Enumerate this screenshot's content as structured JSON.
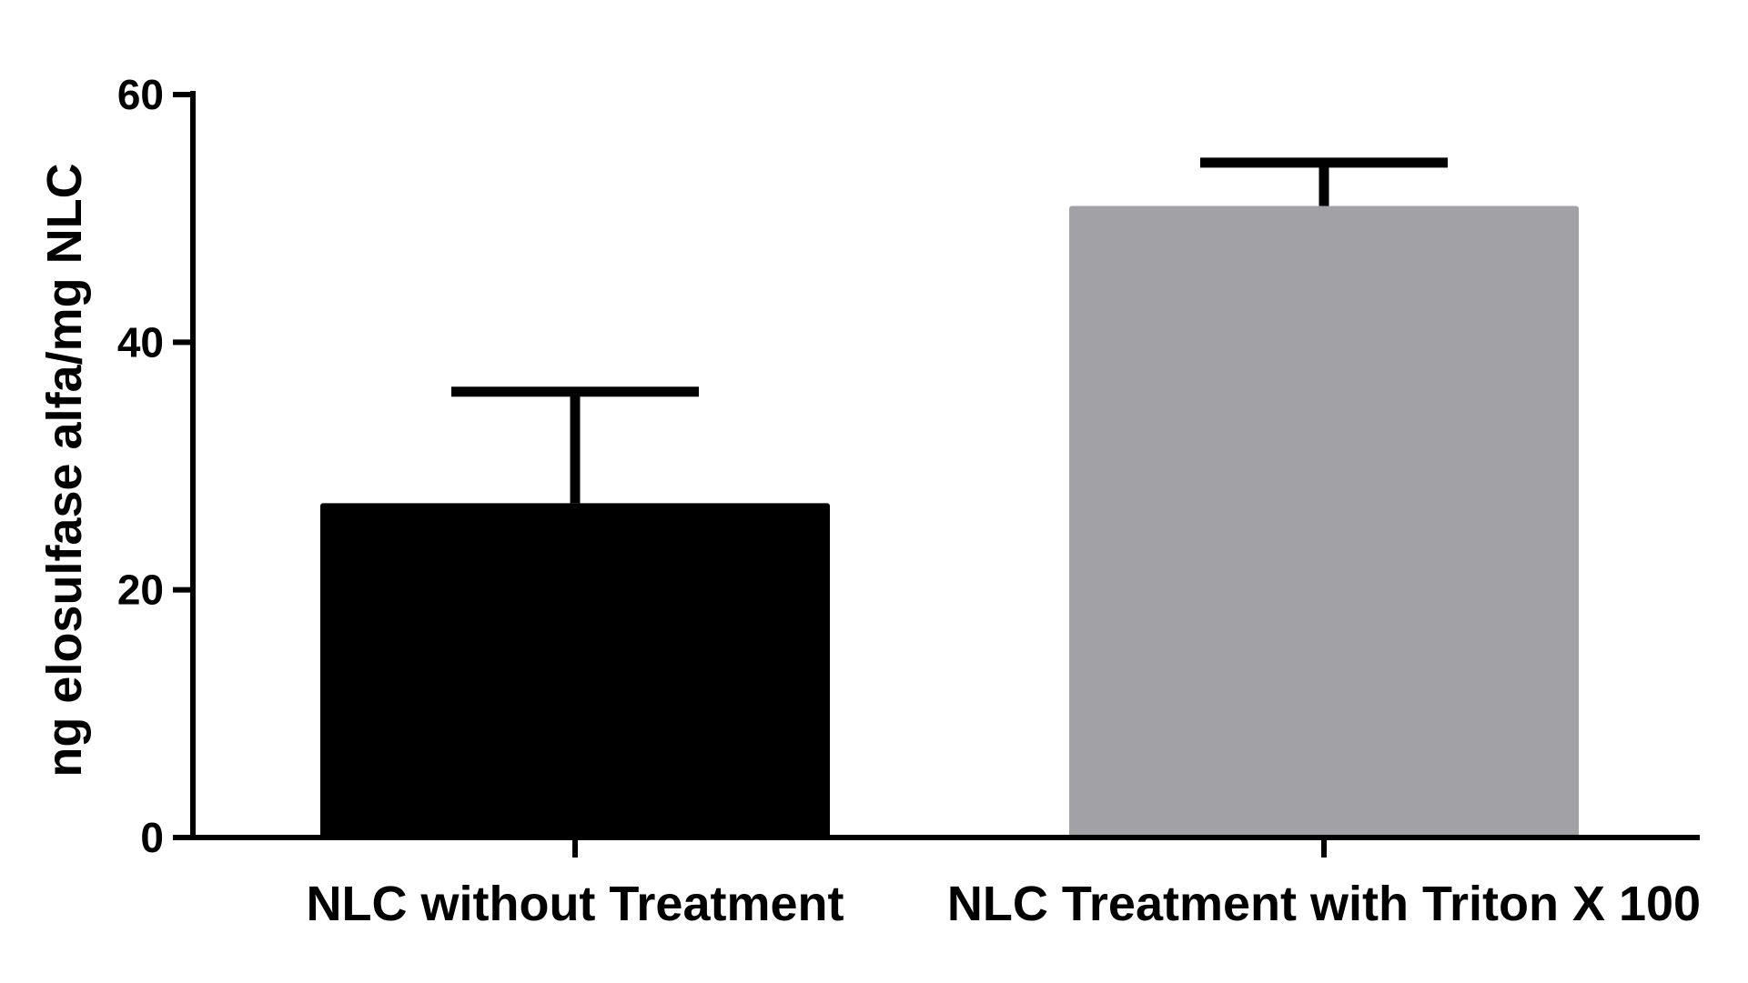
{
  "chart_data": {
    "type": "bar",
    "title": "",
    "xlabel": "",
    "ylabel": "ng elosulfase alfa/mg NLC",
    "ylim": [
      0,
      60
    ],
    "yticks": [
      0,
      20,
      40,
      60
    ],
    "categories": [
      "NLC without Treatment",
      "NLC Treatment with Triton X 100"
    ],
    "values": [
      27,
      51
    ],
    "error_upper": [
      36,
      54.5
    ],
    "colors": [
      "#000000",
      "#a2a2a6"
    ],
    "grid": false,
    "legend": "none"
  }
}
